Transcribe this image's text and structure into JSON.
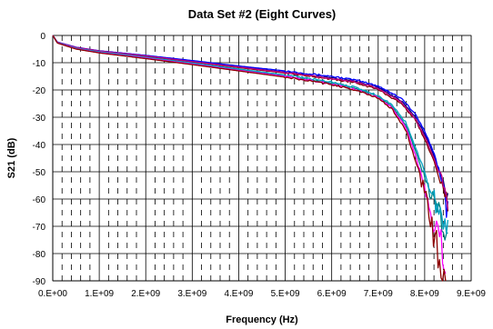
{
  "chart_data": {
    "type": "line",
    "title": "Data Set #2 (Eight Curves)",
    "xlabel": "Frequency (Hz)",
    "ylabel": "S21 (dB)",
    "xlim": [
      0,
      9000000000
    ],
    "ylim": [
      -90,
      0
    ],
    "x_ticks": [
      0,
      1000000000,
      2000000000,
      3000000000,
      4000000000,
      5000000000,
      6000000000,
      7000000000,
      8000000000,
      9000000000
    ],
    "x_tick_labels": [
      "0.E+00",
      "1.E+09",
      "2.E+09",
      "3.E+09",
      "4.E+09",
      "5.E+09",
      "6.E+09",
      "7.E+09",
      "8.E+09",
      "9.E+09"
    ],
    "y_ticks": [
      0,
      -10,
      -20,
      -30,
      -40,
      -50,
      -60,
      -70,
      -80,
      -90
    ],
    "y_tick_labels": [
      "0",
      "-10",
      "-20",
      "-30",
      "-40",
      "-50",
      "-60",
      "-70",
      "-80",
      "-90"
    ],
    "grid": true,
    "legend": "none",
    "series": [
      {
        "color": "#000080",
        "x": [
          0,
          100000000,
          500000000,
          1000000000,
          2000000000,
          3000000000,
          4000000000,
          5000000000,
          6000000000,
          6500000000,
          7000000000,
          7500000000,
          7800000000,
          8000000000,
          8200000000,
          8400000000,
          8500000000
        ],
        "y": [
          0,
          -2.5,
          -4.5,
          -5.8,
          -7.5,
          -9.5,
          -11.5,
          -13.5,
          -15.5,
          -16.8,
          -19,
          -24,
          -30,
          -36,
          -44,
          -54,
          -60
        ]
      },
      {
        "color": "#0000ff",
        "x": [
          0,
          100000000,
          500000000,
          1000000000,
          2000000000,
          3000000000,
          4000000000,
          5000000000,
          6000000000,
          6500000000,
          7000000000,
          7500000000,
          7800000000,
          8000000000,
          8200000000,
          8400000000,
          8500000000
        ],
        "y": [
          0,
          -2.4,
          -4.3,
          -5.6,
          -7.3,
          -9.2,
          -11.2,
          -13,
          -15,
          -16.3,
          -18.5,
          -23,
          -29,
          -35,
          -43,
          -55,
          -66
        ]
      },
      {
        "color": "#800000",
        "x": [
          0,
          100000000,
          500000000,
          1000000000,
          2000000000,
          3000000000,
          4000000000,
          5000000000,
          6000000000,
          6500000000,
          7000000000,
          7500000000,
          7800000000,
          8000000000,
          8200000000,
          8400000000,
          8500000000
        ],
        "y": [
          0,
          -2.6,
          -4.6,
          -5.9,
          -7.7,
          -9.7,
          -11.8,
          -13.8,
          -16,
          -17.3,
          -19.8,
          -25,
          -31,
          -38,
          -46,
          -56,
          -62
        ]
      },
      {
        "color": "#c00080",
        "x": [
          0,
          100000000,
          500000000,
          1000000000,
          2000000000,
          3000000000,
          4000000000,
          5000000000,
          6000000000,
          6500000000,
          7000000000,
          7500000000,
          7800000000,
          8000000000,
          8200000000,
          8400000000,
          8500000000
        ],
        "y": [
          0,
          -2.5,
          -4.4,
          -5.7,
          -7.5,
          -9.6,
          -11.6,
          -13.6,
          -15.8,
          -17,
          -19.5,
          -24.5,
          -30.5,
          -37,
          -45,
          -55,
          -63
        ]
      },
      {
        "color": "#008080",
        "x": [
          0,
          100000000,
          500000000,
          1000000000,
          2000000000,
          3000000000,
          4000000000,
          5000000000,
          6000000000,
          6500000000,
          7000000000,
          7300000000,
          7600000000,
          7800000000,
          8000000000,
          8200000000,
          8400000000,
          8500000000
        ],
        "y": [
          0,
          -2.7,
          -4.8,
          -6.2,
          -8.2,
          -10.3,
          -12.5,
          -14.8,
          -17.5,
          -19.5,
          -22.5,
          -26,
          -33,
          -42,
          -52,
          -62,
          -70,
          -74
        ]
      },
      {
        "color": "#00a0c0",
        "x": [
          0,
          100000000,
          500000000,
          1000000000,
          2000000000,
          3000000000,
          4000000000,
          5000000000,
          6000000000,
          6500000000,
          7000000000,
          7300000000,
          7600000000,
          7800000000,
          8000000000,
          8200000000,
          8400000000,
          8500000000
        ],
        "y": [
          0,
          -2.6,
          -4.7,
          -6,
          -8,
          -10.1,
          -12.3,
          -14.5,
          -17,
          -19,
          -22,
          -25.5,
          -32,
          -41,
          -50,
          -60,
          -68,
          -72
        ]
      },
      {
        "color": "#ff00ff",
        "x": [
          0,
          100000000,
          500000000,
          1000000000,
          2000000000,
          3000000000,
          4000000000,
          5000000000,
          6000000000,
          6500000000,
          7000000000,
          7300000000,
          7600000000,
          7800000000,
          8000000000,
          8100000000,
          8200000000,
          8300000000,
          8400000000,
          8450000000
        ],
        "y": [
          0,
          -2.7,
          -4.9,
          -6.3,
          -8.3,
          -10.5,
          -12.8,
          -15,
          -17.8,
          -19.8,
          -22.8,
          -26.5,
          -34,
          -44,
          -55,
          -62,
          -68,
          -74,
          -79,
          -82
        ]
      },
      {
        "color": "#8b0000",
        "x": [
          0,
          100000000,
          500000000,
          1000000000,
          2000000000,
          3000000000,
          4000000000,
          5000000000,
          6000000000,
          6500000000,
          7000000000,
          7300000000,
          7600000000,
          7800000000,
          8000000000,
          8100000000,
          8200000000,
          8300000000,
          8400000000,
          8450000000
        ],
        "y": [
          0,
          -2.8,
          -5,
          -6.4,
          -8.5,
          -10.7,
          -13,
          -15.3,
          -18,
          -20,
          -23,
          -27,
          -35,
          -46,
          -58,
          -66,
          -74,
          -80,
          -86,
          -89
        ]
      }
    ]
  }
}
